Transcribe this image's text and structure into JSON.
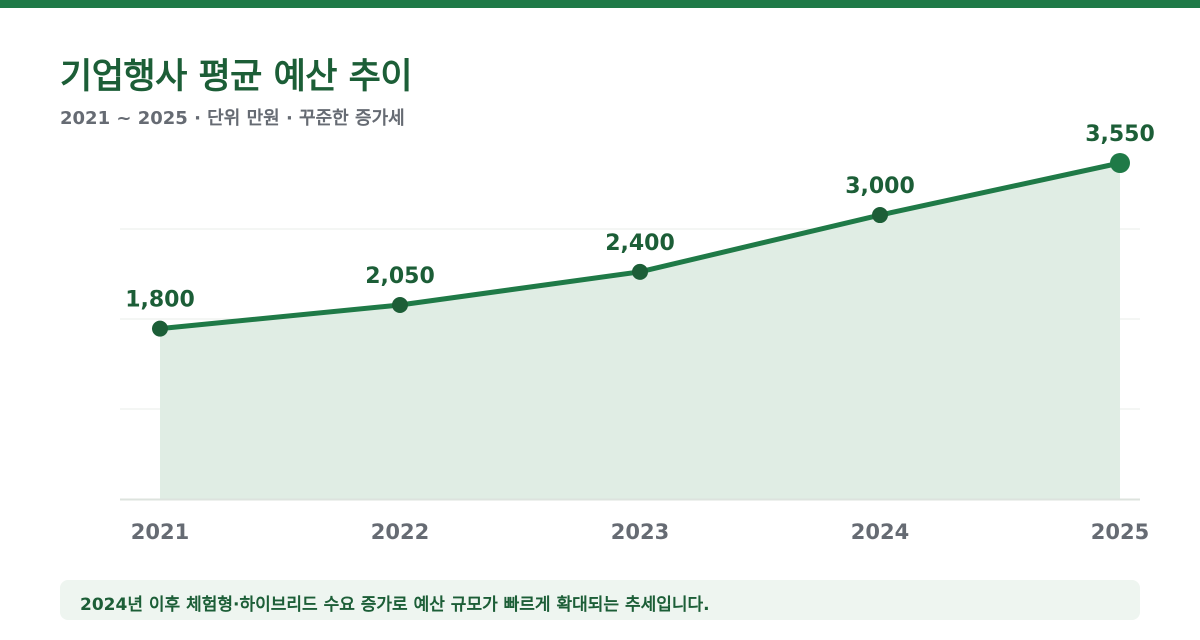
{
  "title": "기업행사 평균 예산 추이",
  "subtitle": "2021 ~ 2025 · 단위 만원 · 꾸준한 증가세",
  "note": "2024년 이후 체험형·하이브리드 수요 증가로 예산 규모가 빠르게 확대되는 추세입니다.",
  "colors": {
    "accent": "#1f7a47",
    "dark_accent": "#1c5e37",
    "area_fill": "#e0ede4",
    "axis_text": "#666b73",
    "grid": "#e9ece9"
  },
  "chart_data": {
    "type": "area",
    "categories": [
      "2021",
      "2022",
      "2023",
      "2024",
      "2025"
    ],
    "series": [
      {
        "values": [
          1800,
          2050,
          2400,
          3000,
          3550
        ]
      }
    ],
    "data_labels": [
      "1,800",
      "2,050",
      "2,400",
      "3,000",
      "3,550"
    ],
    "grid": true,
    "legend": "none"
  }
}
